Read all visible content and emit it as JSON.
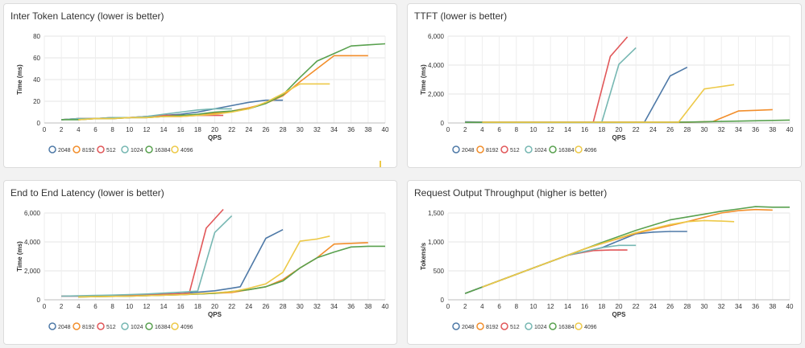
{
  "colors": {
    "2048": "#4e79a7",
    "8192": "#f28e2b",
    "512": "#e15759",
    "1024": "#76b7b2",
    "16384": "#59a14f",
    "4096": "#edc948"
  },
  "chart_data": [
    {
      "type": "line",
      "title": "Inter Token Latency (lower is better)",
      "xlabel": "QPS",
      "ylabel": "Time (ms)",
      "xlim": [
        0,
        40
      ],
      "ylim": [
        0,
        80
      ],
      "xticks": [
        "0",
        "2",
        "4",
        "6",
        "8",
        "10",
        "12",
        "14",
        "16",
        "18",
        "20",
        "22",
        "24",
        "26",
        "28",
        "30",
        "32",
        "34",
        "36",
        "38",
        "40"
      ],
      "yticks": [
        "0",
        "20",
        "40",
        "60",
        "80"
      ],
      "grid": true,
      "legend": "bottom-left",
      "series": [
        {
          "name": "2048",
          "x": [
            2,
            4,
            6,
            8,
            10,
            12,
            14,
            16,
            18,
            20,
            22,
            24,
            26,
            28
          ],
          "y": [
            3,
            4,
            4,
            5,
            5,
            6,
            7,
            8,
            10,
            13,
            16,
            19,
            21,
            21
          ]
        },
        {
          "name": "8192",
          "x": [
            4,
            6,
            8,
            10,
            12,
            14,
            16,
            18,
            20,
            22,
            24,
            26,
            28,
            30,
            32,
            34,
            36,
            38
          ],
          "y": [
            3,
            4,
            4,
            5,
            5,
            6,
            6,
            7,
            9,
            11,
            14,
            18,
            25,
            38,
            50,
            62,
            62,
            62
          ]
        },
        {
          "name": "512",
          "x": [
            2,
            4,
            6,
            8,
            10,
            12,
            14,
            16,
            18,
            20,
            21
          ],
          "y": [
            3,
            4,
            4,
            5,
            5,
            6,
            7,
            7,
            7,
            7,
            7
          ]
        },
        {
          "name": "1024",
          "x": [
            2,
            4,
            6,
            8,
            10,
            12,
            14,
            16,
            18,
            20,
            22
          ],
          "y": [
            3,
            4,
            4,
            5,
            5,
            6,
            8,
            10,
            12,
            13,
            13
          ]
        },
        {
          "name": "16384",
          "x": [
            2,
            4,
            6,
            8,
            10,
            12,
            14,
            16,
            18,
            20,
            22,
            24,
            26,
            28,
            30,
            32,
            34,
            36,
            38,
            40
          ],
          "y": [
            3,
            3,
            4,
            4,
            5,
            5,
            6,
            7,
            8,
            10,
            11,
            13,
            18,
            26,
            42,
            57,
            64,
            71,
            72,
            73
          ]
        },
        {
          "name": "4096",
          "x": [
            4,
            6,
            8,
            10,
            12,
            14,
            16,
            18,
            20,
            22,
            24,
            26,
            28,
            30,
            32,
            33.5
          ],
          "y": [
            3,
            4,
            4,
            5,
            5,
            6,
            6,
            7,
            8,
            10,
            13,
            19,
            27,
            36,
            36,
            36
          ]
        }
      ]
    },
    {
      "type": "line",
      "title": "TTFT (lower is better)",
      "xlabel": "QPS",
      "ylabel": "Time (ms)",
      "xlim": [
        0,
        40
      ],
      "ylim": [
        0,
        6000
      ],
      "xticks": [
        "0",
        "2",
        "4",
        "6",
        "8",
        "10",
        "12",
        "14",
        "16",
        "18",
        "20",
        "22",
        "24",
        "26",
        "28",
        "30",
        "32",
        "34",
        "36",
        "38",
        "40"
      ],
      "yticks": [
        "0",
        "2,000",
        "4,000",
        "6,000"
      ],
      "grid": true,
      "legend": "bottom-left",
      "series": [
        {
          "name": "2048",
          "x": [
            2,
            4,
            8,
            12,
            16,
            20,
            22,
            23,
            26,
            28
          ],
          "y": [
            80,
            60,
            60,
            60,
            60,
            60,
            60,
            60,
            3250,
            3850
          ]
        },
        {
          "name": "8192",
          "x": [
            4,
            10,
            16,
            22,
            28,
            31,
            34,
            36,
            38
          ],
          "y": [
            50,
            50,
            50,
            50,
            50,
            100,
            830,
            870,
            920
          ]
        },
        {
          "name": "512",
          "x": [
            2,
            8,
            14,
            17,
            19,
            21
          ],
          "y": [
            50,
            50,
            50,
            50,
            4600,
            5950
          ]
        },
        {
          "name": "1024",
          "x": [
            2,
            8,
            14,
            18,
            20,
            22
          ],
          "y": [
            50,
            50,
            50,
            50,
            4050,
            5200
          ]
        },
        {
          "name": "16384",
          "x": [
            2,
            8,
            14,
            20,
            26,
            28,
            34,
            40
          ],
          "y": [
            40,
            40,
            40,
            40,
            50,
            60,
            130,
            200
          ]
        },
        {
          "name": "4096",
          "x": [
            4,
            10,
            16,
            22,
            27,
            30,
            33.5
          ],
          "y": [
            50,
            50,
            50,
            50,
            60,
            2350,
            2650
          ]
        }
      ]
    },
    {
      "type": "line",
      "title": "End to End Latency (lower is better)",
      "xlabel": "QPS",
      "ylabel": "Time (ms)",
      "xlim": [
        0,
        40
      ],
      "ylim": [
        0,
        6000
      ],
      "xticks": [
        "0",
        "2",
        "4",
        "6",
        "8",
        "10",
        "12",
        "14",
        "16",
        "18",
        "20",
        "22",
        "24",
        "26",
        "28",
        "30",
        "32",
        "34",
        "36",
        "38",
        "40"
      ],
      "yticks": [
        "0",
        "2,000",
        "4,000",
        "6,000"
      ],
      "grid": true,
      "legend": "bottom-left",
      "series": [
        {
          "name": "2048",
          "x": [
            2,
            4,
            6,
            8,
            10,
            12,
            14,
            16,
            18,
            20,
            22,
            23,
            26,
            28
          ],
          "y": [
            250,
            250,
            260,
            280,
            300,
            340,
            380,
            430,
            520,
            620,
            800,
            900,
            4250,
            4850
          ]
        },
        {
          "name": "8192",
          "x": [
            4,
            10,
            16,
            22,
            26,
            28,
            30,
            32,
            34,
            36,
            38
          ],
          "y": [
            200,
            250,
            350,
            500,
            900,
            1400,
            2200,
            2900,
            3850,
            3900,
            3950
          ]
        },
        {
          "name": "512",
          "x": [
            2,
            4,
            6,
            8,
            10,
            12,
            14,
            16,
            17,
            19,
            21
          ],
          "y": [
            250,
            260,
            270,
            290,
            310,
            340,
            380,
            420,
            450,
            4950,
            6250
          ]
        },
        {
          "name": "1024",
          "x": [
            2,
            4,
            6,
            8,
            10,
            12,
            14,
            16,
            18,
            20,
            22
          ],
          "y": [
            250,
            270,
            300,
            320,
            360,
            400,
            460,
            520,
            600,
            4650,
            5800
          ]
        },
        {
          "name": "16384",
          "x": [
            4,
            10,
            16,
            20,
            24,
            26,
            28,
            30,
            32,
            34,
            36,
            38,
            40
          ],
          "y": [
            200,
            250,
            350,
            450,
            700,
            900,
            1300,
            2200,
            2900,
            3300,
            3650,
            3700,
            3700
          ]
        },
        {
          "name": "4096",
          "x": [
            4,
            10,
            16,
            22,
            24,
            26,
            28,
            30,
            32,
            33.5
          ],
          "y": [
            200,
            250,
            350,
            550,
            800,
            1100,
            1900,
            4050,
            4200,
            4400
          ]
        }
      ]
    },
    {
      "type": "line",
      "title": "Request Output Throughput (higher is better)",
      "xlabel": "QPS",
      "ylabel": "Tokens/s",
      "xlim": [
        0,
        40
      ],
      "ylim": [
        0,
        1500
      ],
      "xticks": [
        "0",
        "2",
        "4",
        "6",
        "8",
        "10",
        "12",
        "14",
        "16",
        "18",
        "20",
        "22",
        "24",
        "26",
        "28",
        "30",
        "32",
        "34",
        "36",
        "38",
        "40"
      ],
      "yticks": [
        "0",
        "500",
        "1,000",
        "1,500"
      ],
      "grid": true,
      "legend": "bottom-left",
      "series": [
        {
          "name": "2048",
          "x": [
            2,
            6,
            10,
            14,
            18,
            22,
            24,
            26,
            28
          ],
          "y": [
            110,
            330,
            550,
            770,
            900,
            1140,
            1170,
            1180,
            1180
          ]
        },
        {
          "name": "8192",
          "x": [
            4,
            10,
            16,
            22,
            28,
            32,
            34,
            36,
            38
          ],
          "y": [
            220,
            550,
            880,
            1150,
            1350,
            1500,
            1540,
            1560,
            1550
          ]
        },
        {
          "name": "512",
          "x": [
            2,
            6,
            10,
            14,
            17,
            19,
            21
          ],
          "y": [
            110,
            330,
            550,
            770,
            850,
            860,
            860
          ]
        },
        {
          "name": "1024",
          "x": [
            2,
            6,
            10,
            14,
            18,
            20,
            22
          ],
          "y": [
            110,
            330,
            550,
            770,
            900,
            940,
            940
          ]
        },
        {
          "name": "16384",
          "x": [
            2,
            6,
            10,
            14,
            18,
            22,
            26,
            30,
            32,
            34,
            36,
            38,
            40
          ],
          "y": [
            110,
            330,
            550,
            770,
            990,
            1200,
            1380,
            1480,
            1530,
            1570,
            1610,
            1600,
            1600
          ]
        },
        {
          "name": "4096",
          "x": [
            4,
            10,
            16,
            22,
            26,
            28,
            30,
            32,
            33.5
          ],
          "y": [
            220,
            550,
            880,
            1160,
            1300,
            1350,
            1370,
            1360,
            1350
          ]
        }
      ]
    }
  ]
}
